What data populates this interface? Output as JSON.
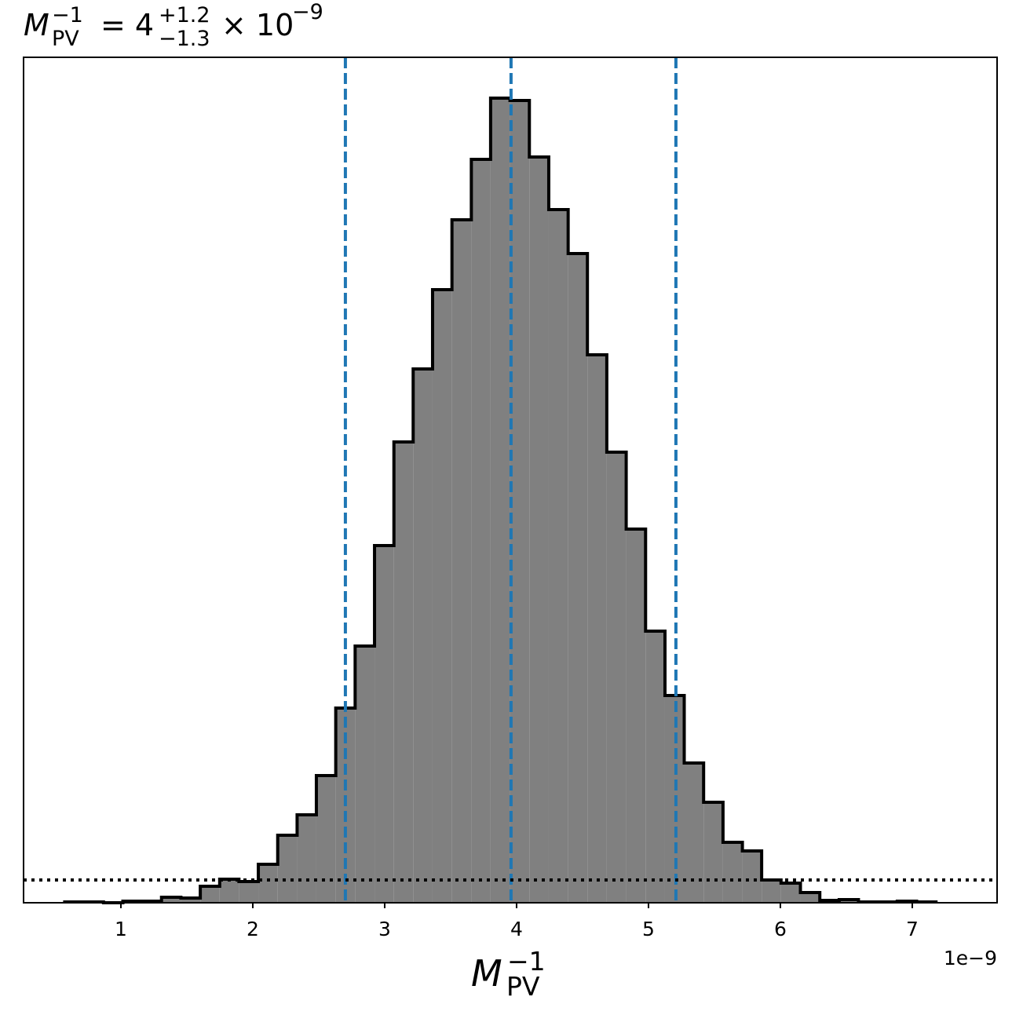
{
  "chart_data": {
    "type": "histogram",
    "title": {
      "symbol": "M",
      "sub": "PV",
      "sup": "−1",
      "eq": "= 4",
      "upper": "+1.2",
      "lower": "−1.3",
      "times": "× 10",
      "exp": "−9"
    },
    "xlabel": {
      "symbol": "M",
      "sub": "PV",
      "sup": "−1"
    },
    "x_offset_label": "1e−9",
    "bins": [
      0.574,
      0.721,
      0.868,
      1.015,
      1.161,
      1.308,
      1.455,
      1.602,
      1.749,
      1.895,
      2.042,
      2.189,
      2.336,
      2.482,
      2.629,
      2.776,
      2.923,
      3.07,
      3.216,
      3.363,
      3.51,
      3.657,
      3.803,
      3.95,
      4.097,
      4.244,
      4.391,
      4.537,
      4.684,
      4.831,
      4.978,
      5.125,
      5.271,
      5.418,
      5.565,
      5.712,
      5.858,
      6.005,
      6.152,
      6.299,
      6.446,
      6.592,
      6.739,
      6.886,
      7.033,
      7.18
    ],
    "counts": [
      1,
      1,
      0,
      2,
      2,
      7,
      6,
      21,
      30,
      27,
      49,
      86,
      112,
      162,
      248,
      327,
      455,
      587,
      680,
      781,
      870,
      947,
      1025,
      1022,
      950,
      883,
      827,
      698,
      574,
      476,
      346,
      264,
      178,
      128,
      77,
      66,
      29,
      25,
      13,
      3,
      4,
      1,
      1,
      2,
      1
    ],
    "color": "#808080",
    "edge_color": "#000000",
    "vlines": [
      2.702,
      3.958,
      5.208
    ],
    "vline_color": "#1f77b4",
    "hline": 29,
    "hline_color": "#000000",
    "xlim": [
      0.262,
      7.643
    ],
    "ylim": [
      0,
      1077
    ],
    "xticks": [
      1,
      2,
      3,
      4,
      5,
      6,
      7
    ]
  }
}
